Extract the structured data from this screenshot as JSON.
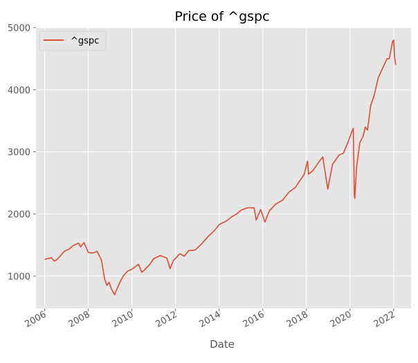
{
  "chart_data": {
    "type": "line",
    "title": "Price of ^gspc",
    "xlabel": "Date",
    "ylabel": "",
    "xlim": [
      2005.6,
      2022.8
    ],
    "ylim": [
      480,
      5000
    ],
    "x_ticks": [
      2006,
      2008,
      2010,
      2012,
      2014,
      2016,
      2018,
      2020,
      2022
    ],
    "x_tick_labels": [
      "2006",
      "2008",
      "2010",
      "2012",
      "2014",
      "2016",
      "2018",
      "2020",
      "2022"
    ],
    "y_ticks": [
      1000,
      2000,
      3000,
      4000,
      5000
    ],
    "y_tick_labels": [
      "1000",
      "2000",
      "3000",
      "4000",
      "5000"
    ],
    "grid": true,
    "legend_position": "top-left",
    "series": [
      {
        "name": "^gspc",
        "color": "#E24A33",
        "x": [
          2006.0,
          2006.3,
          2006.45,
          2006.6,
          2006.9,
          2007.1,
          2007.3,
          2007.55,
          2007.65,
          2007.8,
          2008.0,
          2008.2,
          2008.4,
          2008.6,
          2008.75,
          2008.85,
          2008.95,
          2009.05,
          2009.2,
          2009.3,
          2009.45,
          2009.6,
          2009.8,
          2010.0,
          2010.3,
          2010.45,
          2010.55,
          2010.8,
          2011.0,
          2011.3,
          2011.6,
          2011.75,
          2011.9,
          2012.2,
          2012.4,
          2012.6,
          2012.9,
          2013.2,
          2013.5,
          2013.8,
          2014.0,
          2014.3,
          2014.6,
          2014.8,
          2015.0,
          2015.3,
          2015.6,
          2015.7,
          2015.9,
          2016.1,
          2016.3,
          2016.6,
          2016.9,
          2017.2,
          2017.5,
          2017.9,
          2018.05,
          2018.1,
          2018.3,
          2018.6,
          2018.75,
          2018.98,
          2019.2,
          2019.5,
          2019.7,
          2019.9,
          2020.1,
          2020.15,
          2020.2,
          2020.22,
          2020.3,
          2020.45,
          2020.6,
          2020.7,
          2020.8,
          2020.95,
          2021.1,
          2021.3,
          2021.5,
          2021.7,
          2021.8,
          2021.95,
          2022.0,
          2022.05,
          2022.1
        ],
        "y": [
          1270,
          1295,
          1240,
          1280,
          1400,
          1430,
          1490,
          1530,
          1470,
          1540,
          1380,
          1370,
          1400,
          1260,
          950,
          850,
          900,
          800,
          700,
          780,
          900,
          1000,
          1080,
          1110,
          1190,
          1060,
          1090,
          1180,
          1280,
          1330,
          1290,
          1120,
          1250,
          1360,
          1320,
          1410,
          1420,
          1520,
          1640,
          1740,
          1830,
          1880,
          1960,
          2000,
          2060,
          2100,
          2100,
          1900,
          2070,
          1870,
          2050,
          2160,
          2220,
          2350,
          2430,
          2640,
          2850,
          2640,
          2700,
          2850,
          2920,
          2400,
          2800,
          2950,
          2980,
          3150,
          3340,
          3380,
          2300,
          2250,
          2750,
          3150,
          3250,
          3400,
          3350,
          3750,
          3900,
          4200,
          4350,
          4500,
          4500,
          4780,
          4800,
          4500,
          4400
        ]
      }
    ]
  }
}
